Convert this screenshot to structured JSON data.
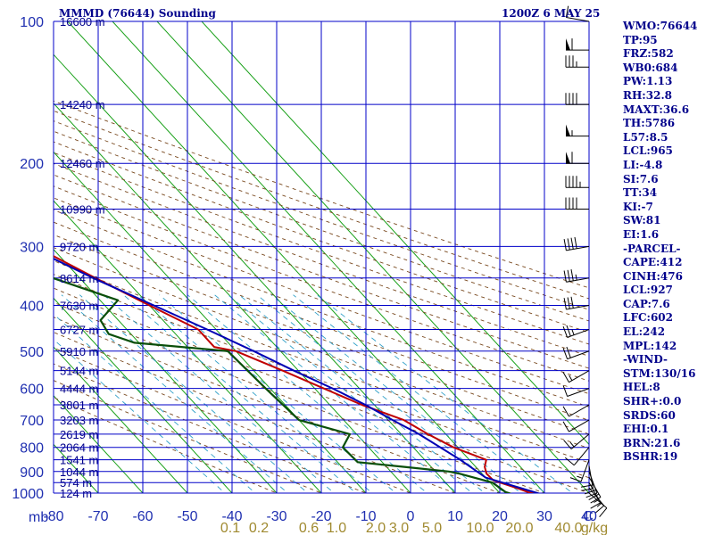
{
  "header": {
    "title": "MMMD (76644) Sounding",
    "timestamp": "1200Z  6 MAY 25"
  },
  "indices": [
    "WMO:76644",
    "TP:95",
    "FRZ:582",
    "WB0:684",
    "PW:1.13",
    "RH:32.8",
    "MAXT:36.6",
    "TH:5786",
    "L57:8.5",
    "LCL:965",
    "LI:-4.8",
    "SI:7.6",
    "TT:34",
    "KI:-7",
    "SW:81",
    "EI:1.6",
    "-PARCEL-",
    "CAPE:412",
    "CINH:476",
    "LCL:927",
    "CAP:7.6",
    "LFC:602",
    "EL:242",
    "MPL:142",
    "-WIND-",
    "STM:130/16",
    "HEL:8",
    "SHR+:0.0",
    "SRDS:60",
    "EHI:0.1",
    "BRN:21.6",
    "BSHR:19"
  ],
  "chart_data": {
    "type": "line",
    "diagram": "skew-T log-p",
    "ylabel": "mb",
    "xlabel": "",
    "xunit": "C",
    "mixing_unit": "g/kg",
    "pressure_range": [
      1000,
      100
    ],
    "temperature_range": [
      -80,
      40
    ],
    "grid": true,
    "colors": {
      "grid": "#0000c8",
      "isotherm": "#18a018",
      "dry_adiabat": "#7a4a20",
      "mixing_ratio": "#30a0c8",
      "temperature": "#c00000",
      "dewpoint": "#0a4f0a",
      "parcel": "#0000b4",
      "wind": "#000000"
    },
    "pressure_levels": [
      {
        "p": 100,
        "label": "100",
        "height": "16600 m"
      },
      {
        "p": 150,
        "label": "",
        "height": "14240 m"
      },
      {
        "p": 200,
        "label": "200",
        "height": "12460 m"
      },
      {
        "p": 250,
        "label": "",
        "height": "10990 m"
      },
      {
        "p": 300,
        "label": "300",
        "height": "9720 m"
      },
      {
        "p": 350,
        "label": "",
        "height": "8614 m"
      },
      {
        "p": 400,
        "label": "400",
        "height": "7630 m"
      },
      {
        "p": 450,
        "label": "",
        "height": "6727 m"
      },
      {
        "p": 500,
        "label": "500",
        "height": "5910 m"
      },
      {
        "p": 550,
        "label": "",
        "height": "5144 m"
      },
      {
        "p": 600,
        "label": "600",
        "height": "4444 m"
      },
      {
        "p": 650,
        "label": "",
        "height": "3801 m"
      },
      {
        "p": 700,
        "label": "700",
        "height": "3203 m"
      },
      {
        "p": 750,
        "label": "",
        "height": "2619 m"
      },
      {
        "p": 800,
        "label": "800",
        "height": "2064 m"
      },
      {
        "p": 850,
        "label": "",
        "height": "1541 m"
      },
      {
        "p": 900,
        "label": "900",
        "height": "1044 m"
      },
      {
        "p": 950,
        "label": "",
        "height": "574 m"
      },
      {
        "p": 1000,
        "label": "1000",
        "height": "124 m"
      }
    ],
    "temperature_ticks": [
      "-80",
      "-70",
      "-60",
      "-50",
      "-40",
      "-30",
      "-20",
      "-10",
      "0",
      "10",
      "20",
      "30",
      "40"
    ],
    "mixing_ratio_ticks": [
      "0.1",
      "0.2",
      "0.6",
      "1.0",
      "2.0",
      "3.0",
      "5.0",
      "10.0",
      "20.0",
      "40.0"
    ],
    "series": [
      {
        "name": "temperature",
        "points": [
          [
            1005,
            28
          ],
          [
            995,
            26.5
          ],
          [
            980,
            25.3
          ],
          [
            940,
            21.2
          ],
          [
            910,
            21
          ],
          [
            880,
            22
          ],
          [
            850,
            23.8
          ],
          [
            800,
            19
          ],
          [
            750,
            16
          ],
          [
            700,
            13.5
          ],
          [
            650,
            7.2
          ],
          [
            600,
            2
          ],
          [
            550,
            -3.5
          ],
          [
            500,
            -10
          ],
          [
            490,
            -14
          ],
          [
            450,
            -14
          ],
          [
            400,
            -20
          ],
          [
            350,
            -26.5
          ],
          [
            300,
            -33.5
          ],
          [
            250,
            -44
          ],
          [
            200,
            -56
          ],
          [
            150,
            -67.5
          ],
          [
            120,
            -73
          ],
          [
            100,
            -81
          ]
        ]
      },
      {
        "name": "dewpoint",
        "points": [
          [
            1005,
            22.5
          ],
          [
            995,
            21.5
          ],
          [
            950,
            20.5
          ],
          [
            910,
            15
          ],
          [
            900,
            13
          ],
          [
            880,
            4
          ],
          [
            860,
            -5.5
          ],
          [
            800,
            -5.8
          ],
          [
            750,
            -1.5
          ],
          [
            700,
            -10
          ],
          [
            600,
            -11
          ],
          [
            500,
            -11.8
          ],
          [
            480,
            -31
          ],
          [
            460,
            -35
          ],
          [
            430,
            -34
          ],
          [
            390,
            -26
          ],
          [
            350,
            -36
          ],
          [
            320,
            -36
          ],
          [
            300,
            -40
          ],
          [
            250,
            -54
          ],
          [
            220,
            -65
          ],
          [
            200,
            -69
          ],
          [
            150,
            -80
          ],
          [
            120,
            -87
          ]
        ]
      },
      {
        "name": "parcel",
        "points": [
          [
            1005,
            29
          ],
          [
            927,
            20
          ],
          [
            850,
            18
          ],
          [
            750,
            14
          ],
          [
            700,
            11
          ],
          [
            650,
            8
          ],
          [
            600,
            4
          ],
          [
            550,
            -1
          ],
          [
            500,
            -6
          ],
          [
            450,
            -12
          ],
          [
            400,
            -19
          ],
          [
            350,
            -27
          ],
          [
            300,
            -35
          ],
          [
            250,
            -45
          ],
          [
            200,
            -57
          ],
          [
            150,
            -71
          ],
          [
            120,
            -80
          ],
          [
            100,
            -88
          ]
        ]
      }
    ],
    "wind_barbs": [
      {
        "p": 1000,
        "dir": 130,
        "kt": 10
      },
      {
        "p": 975,
        "dir": 140,
        "kt": 15
      },
      {
        "p": 950,
        "dir": 150,
        "kt": 15
      },
      {
        "p": 925,
        "dir": 150,
        "kt": 20
      },
      {
        "p": 900,
        "dir": 160,
        "kt": 20
      },
      {
        "p": 875,
        "dir": 170,
        "kt": 20
      },
      {
        "p": 850,
        "dir": 200,
        "kt": 15
      },
      {
        "p": 800,
        "dir": 220,
        "kt": 10
      },
      {
        "p": 750,
        "dir": 230,
        "kt": 15
      },
      {
        "p": 700,
        "dir": 240,
        "kt": 10
      },
      {
        "p": 650,
        "dir": 240,
        "kt": 10
      },
      {
        "p": 600,
        "dir": 250,
        "kt": 10
      },
      {
        "p": 550,
        "dir": 240,
        "kt": 15
      },
      {
        "p": 500,
        "dir": 250,
        "kt": 20
      },
      {
        "p": 450,
        "dir": 250,
        "kt": 25
      },
      {
        "p": 400,
        "dir": 260,
        "kt": 30
      },
      {
        "p": 350,
        "dir": 260,
        "kt": 35
      },
      {
        "p": 300,
        "dir": 260,
        "kt": 40
      },
      {
        "p": 250,
        "dir": 270,
        "kt": 40
      },
      {
        "p": 225,
        "dir": 270,
        "kt": 45
      },
      {
        "p": 200,
        "dir": 270,
        "kt": 60
      },
      {
        "p": 175,
        "dir": 270,
        "kt": 55
      },
      {
        "p": 150,
        "dir": 270,
        "kt": 40
      },
      {
        "p": 125,
        "dir": 270,
        "kt": 35
      },
      {
        "p": 115,
        "dir": 270,
        "kt": 60
      },
      {
        "p": 100,
        "dir": 280,
        "kt": 10
      }
    ]
  }
}
